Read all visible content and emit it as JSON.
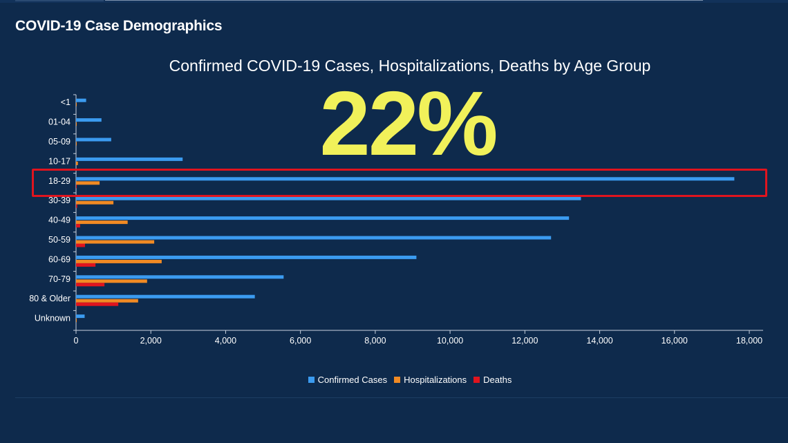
{
  "page": {
    "title": "COVID-19 Case Demographics",
    "highlight_value": "22%"
  },
  "colors": {
    "background": "#0e2a4c",
    "confirmed": "#3b9bf0",
    "hospitalizations": "#f08a24",
    "deaths": "#e0141e",
    "highlight_text": "#f1f15a",
    "highlight_box": "#e0141e"
  },
  "chart_data": {
    "type": "bar",
    "orientation": "horizontal",
    "title": "Confirmed COVID-19 Cases, Hospitalizations, Deaths by Age Group",
    "categories": [
      "<1",
      "01-04",
      "05-09",
      "10-17",
      "18-29",
      "30-39",
      "40-49",
      "50-59",
      "60-69",
      "70-79",
      "80 & Older",
      "Unknown"
    ],
    "series": [
      {
        "name": "Confirmed Cases",
        "color": "#3b9bf0",
        "values": [
          270,
          680,
          940,
          2850,
          17600,
          13500,
          13180,
          12700,
          9100,
          5550,
          4780,
          230
        ]
      },
      {
        "name": "Hospitalizations",
        "color": "#f08a24",
        "values": [
          10,
          10,
          10,
          50,
          630,
          1000,
          1380,
          2090,
          2290,
          1900,
          1660,
          10
        ]
      },
      {
        "name": "Deaths",
        "color": "#e0141e",
        "values": [
          0,
          0,
          0,
          0,
          10,
          30,
          110,
          240,
          520,
          760,
          1130,
          0
        ]
      }
    ],
    "xlim": [
      0,
      18000
    ],
    "xticks": [
      "0",
      "2,000",
      "4,000",
      "6,000",
      "8,000",
      "10,000",
      "12,000",
      "14,000",
      "16,000",
      "18,000"
    ],
    "legend_position": "bottom-center",
    "grid": false
  }
}
